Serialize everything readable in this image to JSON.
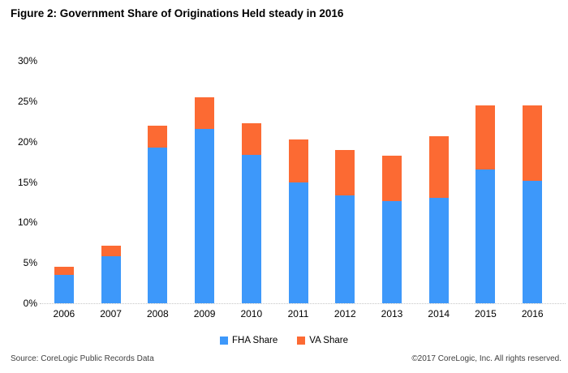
{
  "chart_data": {
    "type": "bar",
    "stacked": true,
    "title": "Figure 2: Government Share of Originations Held steady in 2016",
    "categories": [
      "2006",
      "2007",
      "2008",
      "2009",
      "2010",
      "2011",
      "2012",
      "2013",
      "2014",
      "2015",
      "2016"
    ],
    "series": [
      {
        "name": "FHA Share",
        "color": "#3D98FA",
        "values": [
          3.5,
          5.8,
          19.3,
          21.6,
          18.4,
          15.0,
          13.3,
          12.6,
          13.0,
          16.6,
          15.2
        ]
      },
      {
        "name": "VA Share",
        "color": "#FC6A33",
        "values": [
          1.0,
          1.3,
          2.7,
          3.9,
          3.9,
          5.3,
          5.7,
          5.7,
          7.7,
          7.9,
          9.3
        ]
      }
    ],
    "totals": [
      4.5,
      7.1,
      22.0,
      25.5,
      22.3,
      20.3,
      19.0,
      18.3,
      20.7,
      24.5,
      24.5
    ],
    "xlabel": "",
    "ylabel": "",
    "y_ticks": [
      "0%",
      "5%",
      "10%",
      "15%",
      "20%",
      "25%",
      "30%"
    ],
    "ylim": [
      0,
      30
    ],
    "grid": false,
    "legend_position": "bottom",
    "axis_line_color": "#c6c6c6"
  },
  "footer": {
    "source": "Source: CoreLogic Public Records Data",
    "copyright": "©2017 CoreLogic, Inc. All rights reserved."
  }
}
